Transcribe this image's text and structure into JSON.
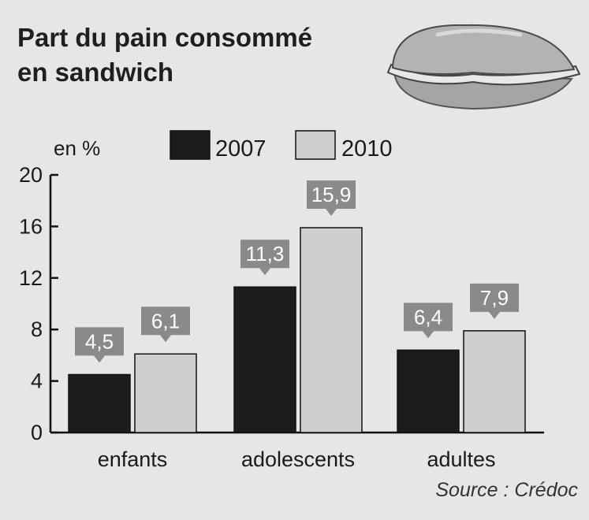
{
  "title": "Part du pain consommé\nen sandwich",
  "unit_label": "en %",
  "source": "Source : Crédoc",
  "colors": {
    "background": "#e6e6e6",
    "series_2007": "#1c1c1c",
    "series_2010": "#cfcfcf",
    "callout": "#8a8a8a",
    "axis": "#111111"
  },
  "illustration": "sandwich-illustration",
  "chart_data": {
    "type": "bar",
    "categories": [
      "enfants",
      "adolescents",
      "adultes"
    ],
    "series": [
      {
        "name": "2007",
        "values": [
          4.5,
          11.3,
          6.4
        ],
        "labels": [
          "4,5",
          "11,3",
          "6,4"
        ]
      },
      {
        "name": "2010",
        "values": [
          6.1,
          15.9,
          7.9
        ],
        "labels": [
          "6,1",
          "15,9",
          "7,9"
        ]
      }
    ],
    "ylim": [
      0,
      20
    ],
    "yticks": [
      0,
      4,
      8,
      12,
      16,
      20
    ],
    "ylabel": "en %",
    "xlabel": "",
    "grid": false,
    "legend_position": "top"
  }
}
